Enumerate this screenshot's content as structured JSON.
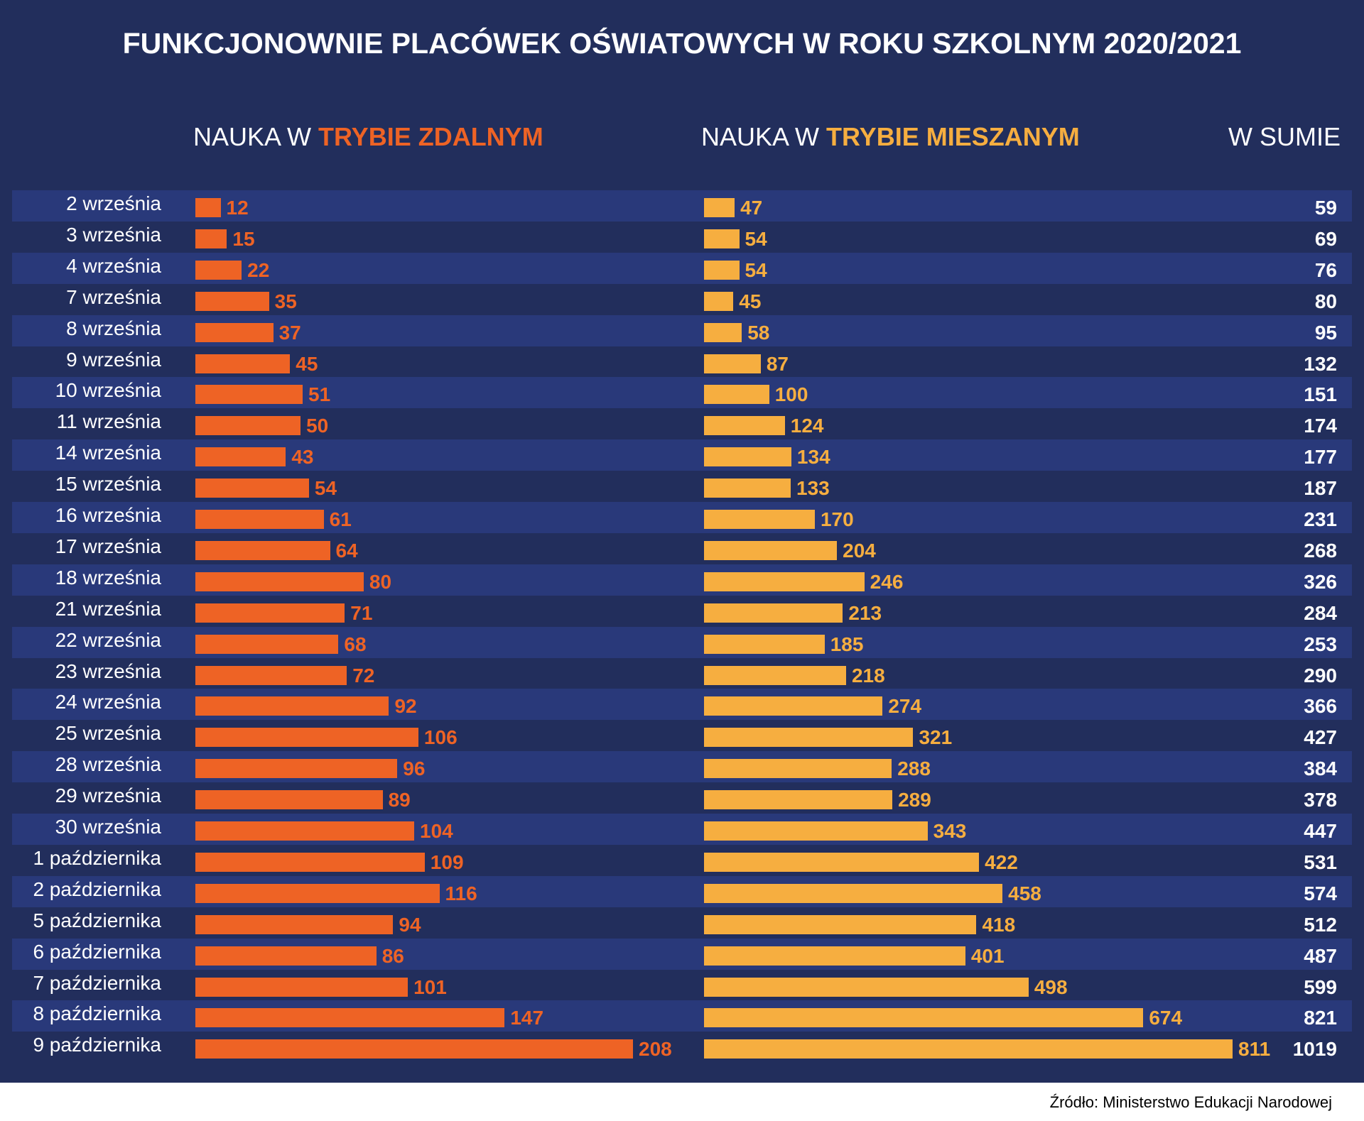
{
  "chart_data": {
    "type": "bar",
    "orientation": "horizontal",
    "title": "FUNKCJONOWNIE PLACÓWEK OŚWIATOWYCH W ROKU SZKOLNYM 2020/2021",
    "columns": [
      {
        "prefix": "NAUKA W ",
        "highlight": "TRYBIE ZDALNYM",
        "color": "#ee6325"
      },
      {
        "prefix": "NAUKA W ",
        "highlight": "TRYBIE MIESZANYM",
        "color": "#f6ae40"
      },
      {
        "prefix": "W SUMIE",
        "highlight": "",
        "color": "#ffffff"
      }
    ],
    "categories": [
      "2 września",
      "3 września",
      "4 września",
      "7 września",
      "8 września",
      "9 września",
      "10 września",
      "11 września",
      "14 września",
      "15 września",
      "16 września",
      "17 września",
      "18 września",
      "21 września",
      "22 września",
      "23 września",
      "24 września",
      "25 września",
      "28 września",
      "29 września",
      "30 września",
      "1 października",
      "2 października",
      "5 października",
      "6 października",
      "7 października",
      "8 października",
      "9 października"
    ],
    "series": [
      {
        "name": "Nauka w trybie zdalnym",
        "color": "#ee6325",
        "values": [
          12,
          15,
          22,
          35,
          37,
          45,
          51,
          50,
          43,
          54,
          61,
          64,
          80,
          71,
          68,
          72,
          92,
          106,
          96,
          89,
          104,
          109,
          116,
          94,
          86,
          101,
          147,
          208
        ]
      },
      {
        "name": "Nauka w trybie mieszanym",
        "color": "#f6ae40",
        "values": [
          47,
          54,
          54,
          45,
          58,
          87,
          100,
          124,
          134,
          133,
          170,
          204,
          246,
          213,
          185,
          218,
          274,
          321,
          288,
          289,
          343,
          422,
          458,
          418,
          401,
          498,
          674,
          811
        ]
      },
      {
        "name": "W sumie",
        "color": "#ffffff",
        "values": [
          59,
          69,
          76,
          80,
          95,
          132,
          151,
          174,
          177,
          187,
          231,
          268,
          326,
          284,
          253,
          290,
          366,
          427,
          384,
          378,
          447,
          531,
          574,
          512,
          487,
          599,
          821,
          1019
        ]
      }
    ],
    "source": "Źródło: Ministerstwo Edukacji Narodowej",
    "background": "#222e5c",
    "band_color": "#29397a"
  }
}
